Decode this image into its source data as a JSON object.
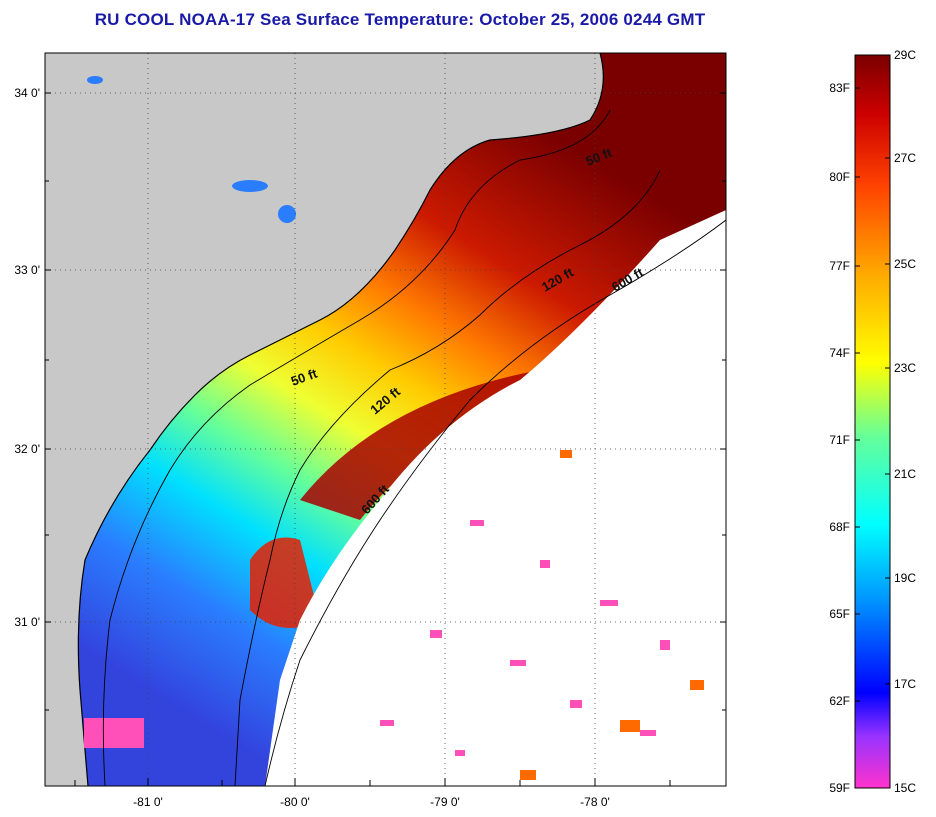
{
  "title": "RU COOL  NOAA-17  Sea Surface Temperature:  October 25, 2006 0244 GMT",
  "lat_labels": [
    "34 0'",
    "33 0'",
    "32 0'",
    "31 0'"
  ],
  "lon_labels": [
    "-81 0'",
    "-80 0'",
    "-79 0'",
    "-78 0'"
  ],
  "depth_labels": [
    "50 ft",
    "120 ft",
    "600 ft",
    "50 ft",
    "120 ft",
    "600 ft"
  ],
  "colorbar": {
    "fahrenheit": [
      "83F",
      "80F",
      "77F",
      "74F",
      "71F",
      "68F",
      "65F",
      "62F",
      "59F"
    ],
    "celsius": [
      "29C",
      "27C",
      "25C",
      "23C",
      "21C",
      "19C",
      "17C",
      "15C"
    ],
    "colors": [
      "#ff33cc",
      "#9933ff",
      "#0000ff",
      "#0099ff",
      "#00ffff",
      "#66ff99",
      "#ffff00",
      "#ffaa00",
      "#ff4400",
      "#cc0000",
      "#7a0000"
    ]
  },
  "colors": {
    "land": "#c8c8c8",
    "title": "#1a1aa8",
    "cloud": "#ffffff"
  }
}
